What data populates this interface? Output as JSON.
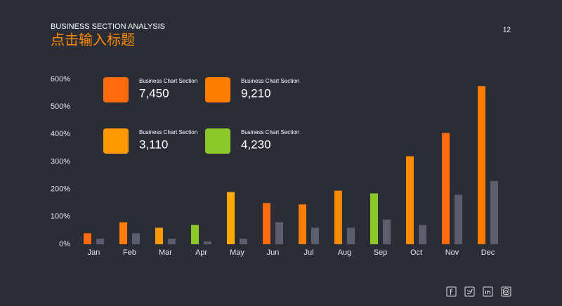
{
  "header": {
    "subtitle": "BUSINESS SECTION ANALYSIS",
    "title": "点击输入标题",
    "page_number": "12"
  },
  "cards": [
    {
      "label": "Business Chart Section",
      "value": "7,450",
      "color": "#ff6a0e"
    },
    {
      "label": "Business Chart Section",
      "value": "9,210",
      "color": "#ff7e00"
    },
    {
      "label": "Business Chart Section",
      "value": "3,110",
      "color": "#ff9a00"
    },
    {
      "label": "Business Chart Section",
      "value": "4,230",
      "color": "#8dc82b"
    }
  ],
  "chart_data": {
    "type": "bar",
    "categories": [
      "Jan",
      "Feb",
      "Mar",
      "Apr",
      "May",
      "Jun",
      "Jul",
      "Aug",
      "Sep",
      "Oct",
      "Nov",
      "Dec"
    ],
    "series": [
      {
        "values": [
          40,
          80,
          60,
          70,
          190,
          150,
          145,
          195,
          185,
          320,
          405,
          575
        ],
        "colors": [
          "#ff6a0e",
          "#ff7e00",
          "#ff9a00",
          "#8dc82b",
          "#ffa800",
          "#ff6a0e",
          "#ff7e00",
          "#ff8c00",
          "#8dc82b",
          "#ff8c00",
          "#ff6a0e",
          "#ff7e00"
        ]
      },
      {
        "values": [
          20,
          40,
          20,
          10,
          20,
          80,
          60,
          60,
          90,
          70,
          180,
          230
        ],
        "color": "#5b5e6d"
      }
    ],
    "ylim": [
      0,
      600
    ],
    "yticks": [
      {
        "value": 0,
        "label": "0%"
      },
      {
        "value": 100,
        "label": "100%"
      },
      {
        "value": 200,
        "label": "200%"
      },
      {
        "value": 300,
        "label": "300%"
      },
      {
        "value": 400,
        "label": "400%"
      },
      {
        "value": 500,
        "label": "500%"
      },
      {
        "value": 600,
        "label": "600%"
      }
    ]
  }
}
